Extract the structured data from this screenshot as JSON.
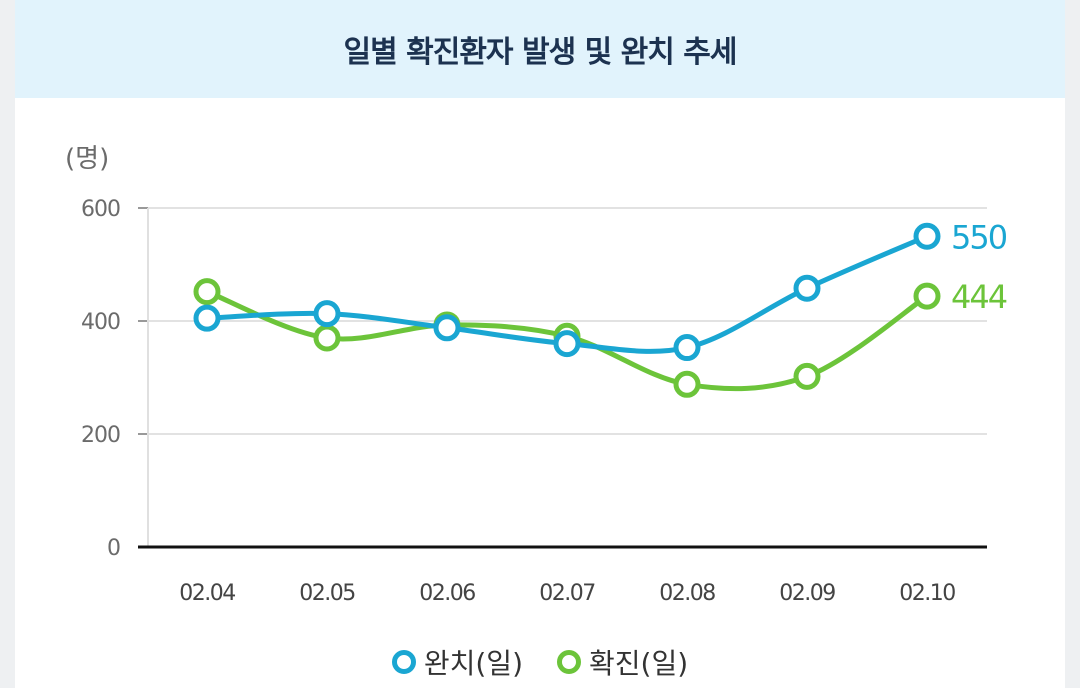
{
  "chart_data": {
    "type": "line",
    "title": "일별 확진환자 발생 및 완치 추세",
    "ylabel": "(명)",
    "xlabel": "",
    "ylim": [
      0,
      600
    ],
    "yticks": [
      0,
      200,
      400,
      600
    ],
    "grid": true,
    "legend_position": "bottom",
    "categories": [
      "02.04",
      "02.05",
      "02.06",
      "02.07",
      "02.08",
      "02.09",
      "02.10"
    ],
    "series": [
      {
        "name": "완치(일)",
        "color": "#1aa6d2",
        "values": [
          405,
          413,
          388,
          360,
          353,
          458,
          550
        ],
        "end_label": "550"
      },
      {
        "name": "확진(일)",
        "color": "#6cc43a",
        "values": [
          452,
          370,
          393,
          373,
          288,
          302,
          444
        ],
        "end_label": "444"
      }
    ]
  }
}
